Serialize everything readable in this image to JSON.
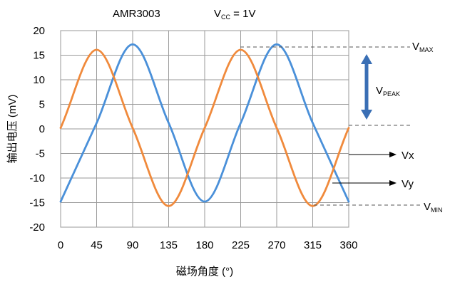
{
  "chart_data": {
    "type": "line",
    "title_left": "AMR3003",
    "title_right_main": "V",
    "title_right_sub": "CC",
    "title_right_tail": " = 1V",
    "xlabel": "磁场角度 (°)",
    "ylabel": "输出电压 (mV)",
    "xlim": [
      0,
      360
    ],
    "ylim": [
      -20,
      20
    ],
    "xticks": [
      "0",
      "45",
      "90",
      "135",
      "180",
      "225",
      "270",
      "315",
      "360"
    ],
    "yticks": [
      "20",
      "15",
      "10",
      "5",
      "0",
      "-5",
      "-10",
      "-15",
      "-20"
    ],
    "grid": true,
    "series": [
      {
        "name": "Vx",
        "color": "#4a90d9",
        "x": [
          0,
          45,
          90,
          135,
          180,
          225,
          270,
          315,
          360
        ],
        "y": [
          -14.8,
          1.2,
          17.2,
          1.2,
          -14.8,
          1.2,
          17.2,
          1.2,
          -14.8
        ]
      },
      {
        "name": "Vy",
        "color": "#f08a3c",
        "x": [
          0,
          45,
          90,
          135,
          180,
          225,
          270,
          315,
          360
        ],
        "y": [
          0.2,
          16.1,
          0.2,
          -15.7,
          0.2,
          16.1,
          0.2,
          -15.7,
          0.2
        ]
      }
    ],
    "annotations": {
      "vmax_main": "V",
      "vmax_sub": "MAX",
      "vpeak_main": "V",
      "vpeak_sub": "PEAK",
      "vmin_main": "V",
      "vmin_sub": "MIN",
      "vx_label": "Vx",
      "vy_label": "Vy",
      "arrow_color": "#3a6fb5"
    }
  }
}
